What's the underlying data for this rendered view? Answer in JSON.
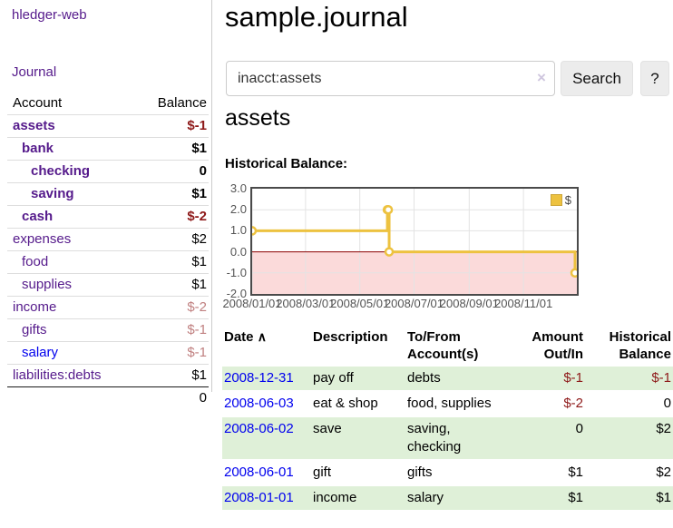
{
  "colors": {
    "link_purple": "#551a8b",
    "link_blue": "#0000ee",
    "negative_strong": "#8e1919",
    "negative_muted": "#c08080",
    "row_shaded_green": "#dff0d8",
    "chart_line": "#edc240",
    "chart_negative_region": "#fbdada",
    "chart_zero_line": "#8b0000"
  },
  "sidebar": {
    "app_title": "hledger-web",
    "journal_link": "Journal",
    "account_header": "Account",
    "balance_header": "Balance",
    "accounts": [
      {
        "name": "assets",
        "balance": "$-1",
        "depth": 0,
        "bold": true,
        "neg": "strong",
        "link": "purple"
      },
      {
        "name": "bank",
        "balance": "$1",
        "depth": 1,
        "bold": true,
        "neg": "none",
        "link": "purple"
      },
      {
        "name": "checking",
        "balance": "0",
        "depth": 2,
        "bold": true,
        "neg": "none",
        "link": "purple"
      },
      {
        "name": "saving",
        "balance": "$1",
        "depth": 2,
        "bold": true,
        "neg": "none",
        "link": "purple"
      },
      {
        "name": "cash",
        "balance": "$-2",
        "depth": 1,
        "bold": true,
        "neg": "strong",
        "link": "purple"
      },
      {
        "name": "expenses",
        "balance": "$2",
        "depth": 0,
        "bold": false,
        "neg": "none",
        "link": "purple"
      },
      {
        "name": "food",
        "balance": "$1",
        "depth": 1,
        "bold": false,
        "neg": "none",
        "link": "purple"
      },
      {
        "name": "supplies",
        "balance": "$1",
        "depth": 1,
        "bold": false,
        "neg": "none",
        "link": "purple"
      },
      {
        "name": "income",
        "balance": "$-2",
        "depth": 0,
        "bold": false,
        "neg": "muted",
        "link": "purple"
      },
      {
        "name": "gifts",
        "balance": "$-1",
        "depth": 1,
        "bold": false,
        "neg": "muted",
        "link": "purple"
      },
      {
        "name": "salary",
        "balance": "$-1",
        "depth": 1,
        "bold": false,
        "neg": "muted",
        "link": "blue"
      },
      {
        "name": "liabilities:debts",
        "balance": "$1",
        "depth": 0,
        "bold": false,
        "neg": "none",
        "link": "purple"
      }
    ],
    "total": "0"
  },
  "main": {
    "title": "sample.journal",
    "search": {
      "value": "inacct:assets",
      "clear_icon": "×",
      "button_label": "Search",
      "help_label": "?"
    },
    "account_heading": "assets",
    "section_label": "Historical Balance:"
  },
  "chart_data": {
    "type": "line",
    "step": true,
    "title": "Historical Balance:",
    "legend": "$",
    "legend_position": "top-right",
    "grid": true,
    "negative_region_shaded": true,
    "ylim": [
      -2,
      3
    ],
    "y_ticks": [
      "3.0",
      "2.0",
      "1.0",
      "0.0",
      "-1.0",
      "-2.0"
    ],
    "x_total_days": 365,
    "x_ticks": [
      {
        "label": "2008/01/01",
        "day": 0
      },
      {
        "label": "2008/03/01",
        "day": 60
      },
      {
        "label": "2008/05/01",
        "day": 121
      },
      {
        "label": "2008/07/01",
        "day": 182
      },
      {
        "label": "2008/09/01",
        "day": 244
      },
      {
        "label": "2008/11/01",
        "day": 305
      }
    ],
    "series": [
      {
        "name": "$",
        "points": [
          {
            "date": "2008-01-01",
            "day": 0,
            "value": 1
          },
          {
            "date": "2008-06-01",
            "day": 152,
            "value": 2
          },
          {
            "date": "2008-06-02",
            "day": 153,
            "value": 2
          },
          {
            "date": "2008-06-03",
            "day": 154,
            "value": 0
          },
          {
            "date": "2008-12-31",
            "day": 365,
            "value": -1
          }
        ]
      }
    ]
  },
  "register": {
    "headers": {
      "date": "Date",
      "sort_icon": "∧",
      "description": "Description",
      "tofrom": "To/From Account(s)",
      "amount": "Amount Out/In",
      "balance": "Historical Balance"
    },
    "rows": [
      {
        "date": "2008-12-31",
        "description": "pay off",
        "accounts": "debts",
        "amount": "$-1",
        "balance": "$-1",
        "amount_neg": true,
        "balance_neg": true,
        "shaded": true
      },
      {
        "date": "2008-06-03",
        "description": "eat & shop",
        "accounts": "food, supplies",
        "amount": "$-2",
        "balance": "0",
        "amount_neg": true,
        "balance_neg": false,
        "shaded": false
      },
      {
        "date": "2008-06-02",
        "description": "save",
        "accounts": "saving, checking",
        "amount": "0",
        "balance": "$2",
        "amount_neg": false,
        "balance_neg": false,
        "shaded": true
      },
      {
        "date": "2008-06-01",
        "description": "gift",
        "accounts": "gifts",
        "amount": "$1",
        "balance": "$2",
        "amount_neg": false,
        "balance_neg": false,
        "shaded": false
      },
      {
        "date": "2008-01-01",
        "description": "income",
        "accounts": "salary",
        "amount": "$1",
        "balance": "$1",
        "amount_neg": false,
        "balance_neg": false,
        "shaded": true
      }
    ]
  }
}
